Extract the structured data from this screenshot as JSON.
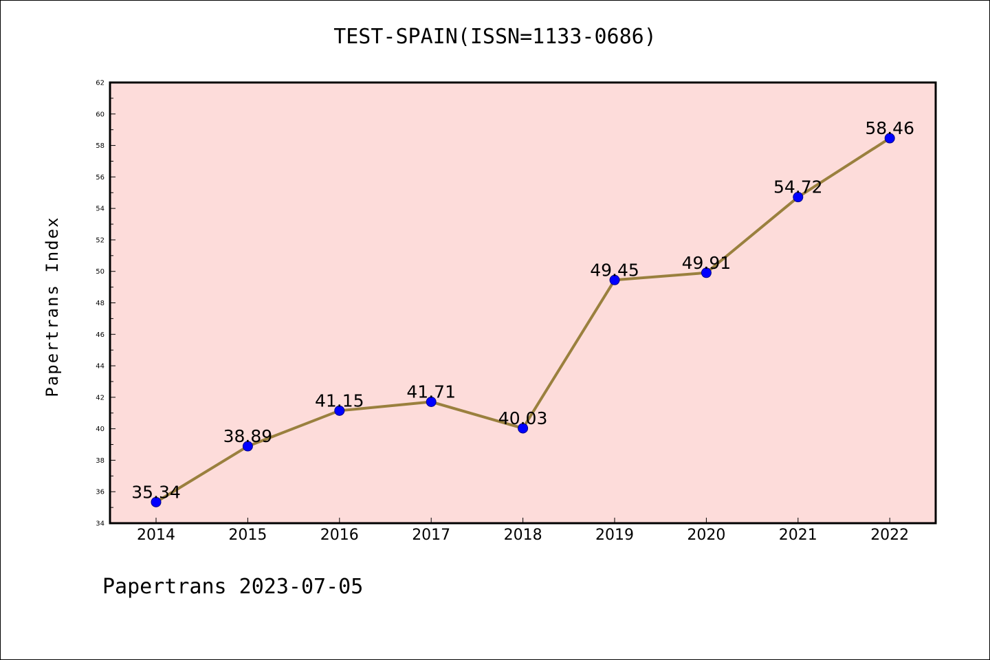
{
  "title": "TEST-SPAIN(ISSN=1133-0686)",
  "footer": "Papertrans 2023-07-05",
  "colors": {
    "plot_background": "#fddcda",
    "line": "#9a803e",
    "marker": "#0000ff",
    "axis": "#000000"
  },
  "chart_data": {
    "type": "line",
    "title": "TEST-SPAIN(ISSN=1133-0686)",
    "xlabel": "",
    "ylabel": "Papertrans Index",
    "categories": [
      "2014",
      "2015",
      "2016",
      "2017",
      "2018",
      "2019",
      "2020",
      "2021",
      "2022"
    ],
    "series": [
      {
        "values": [
          35.34,
          38.89,
          41.15,
          41.71,
          40.03,
          49.45,
          49.91,
          54.72,
          58.46
        ],
        "labels": [
          "35.34",
          "38.89",
          "41.15",
          "41.71",
          "40.03",
          "49.45",
          "49.91",
          "54.72",
          "58.46"
        ]
      }
    ],
    "ylim": [
      34,
      62
    ],
    "yticks": [
      34,
      36,
      38,
      40,
      42,
      44,
      46,
      48,
      50,
      52,
      54,
      56,
      58,
      60,
      62
    ],
    "grid": false,
    "legend": "none"
  }
}
